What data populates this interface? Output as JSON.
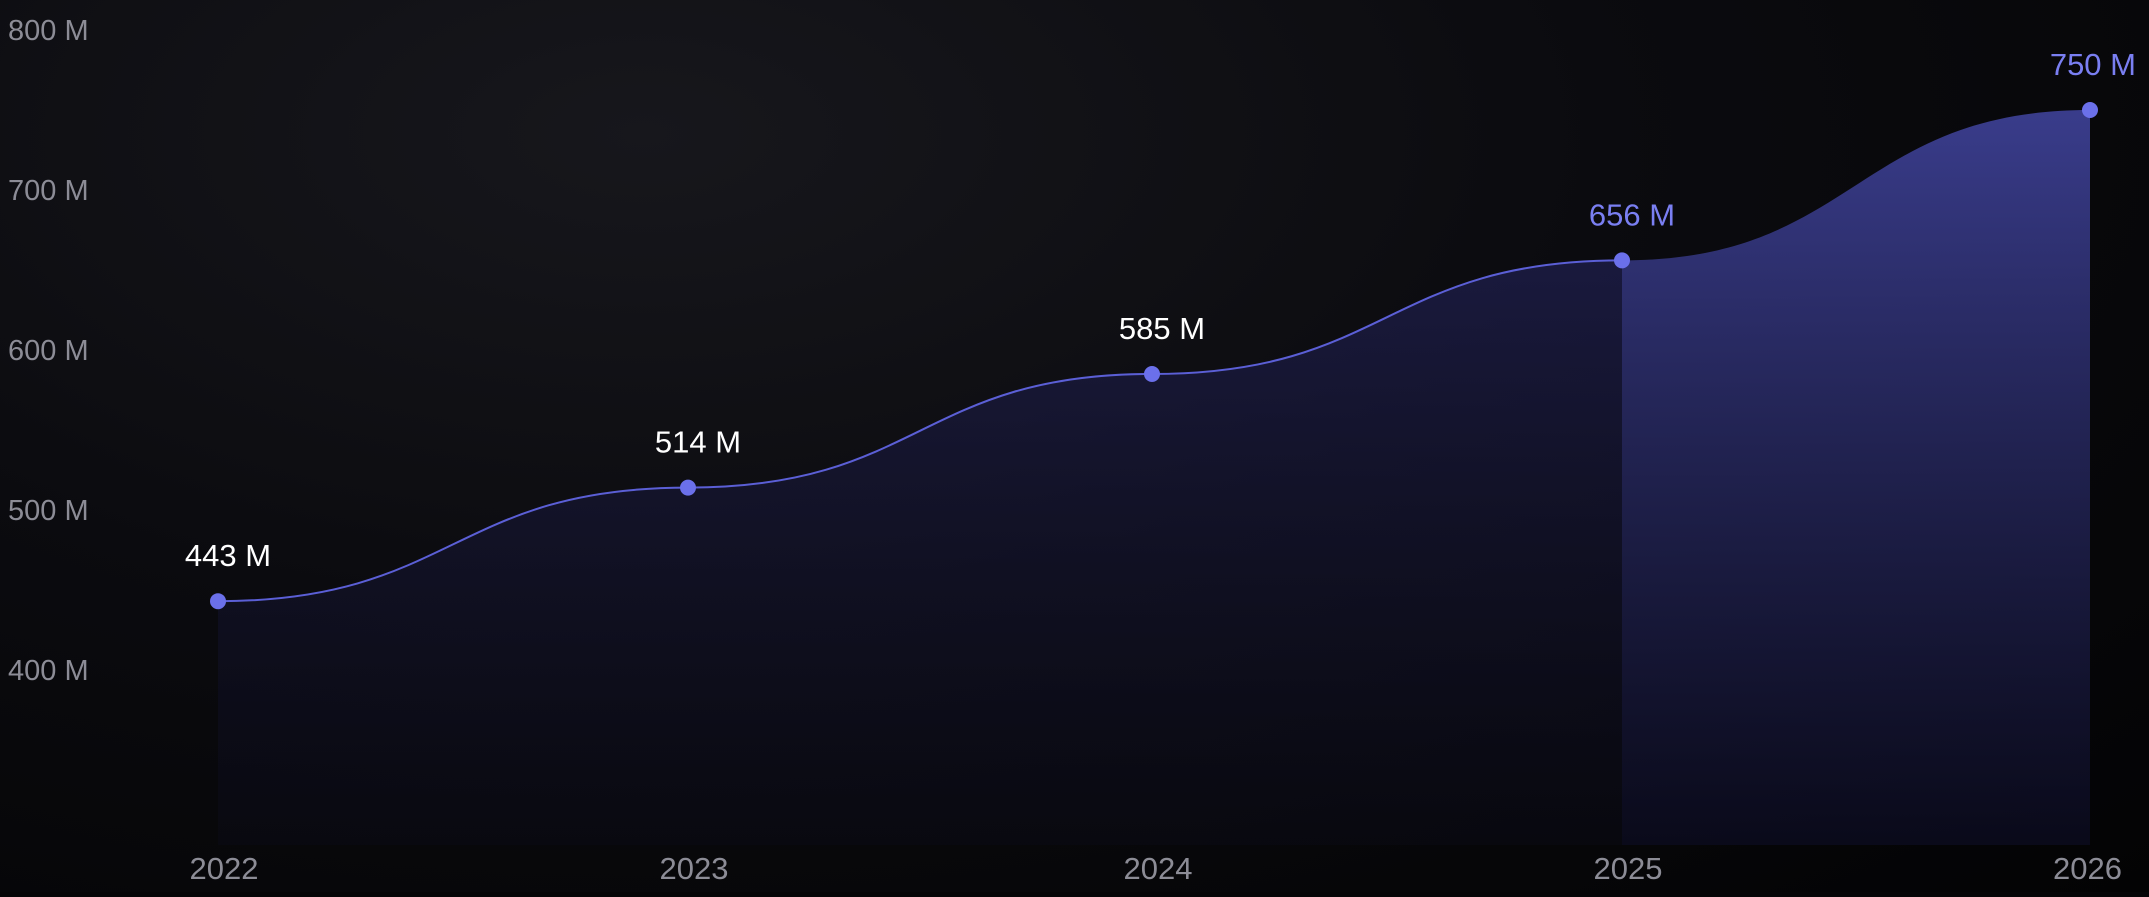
{
  "chart_data": {
    "type": "area",
    "title": "",
    "xlabel": "",
    "ylabel": "",
    "categories": [
      "2022",
      "2023",
      "2024",
      "2025",
      "2026"
    ],
    "series": [
      {
        "values": [
          443,
          514,
          585,
          656,
          750
        ],
        "data_labels": [
          "443 M",
          "514 M",
          "585 M",
          "656 M",
          "750 M"
        ]
      }
    ],
    "projected_from": "2025",
    "y_ticks": [
      {
        "value": 800,
        "label": "800 M"
      },
      {
        "value": 700,
        "label": "700 M"
      },
      {
        "value": 600,
        "label": "600 M"
      },
      {
        "value": 500,
        "label": "500 M"
      },
      {
        "value": 400,
        "label": "400 M"
      }
    ],
    "ylim": [
      300,
      800
    ],
    "grid": false,
    "legend": "none",
    "colors": {
      "line": "#5b5fd6",
      "point": "#6b70ea",
      "label_actual": "#ffffff",
      "label_projected": "#7a7ff2",
      "tick": "#8c8c96"
    }
  }
}
